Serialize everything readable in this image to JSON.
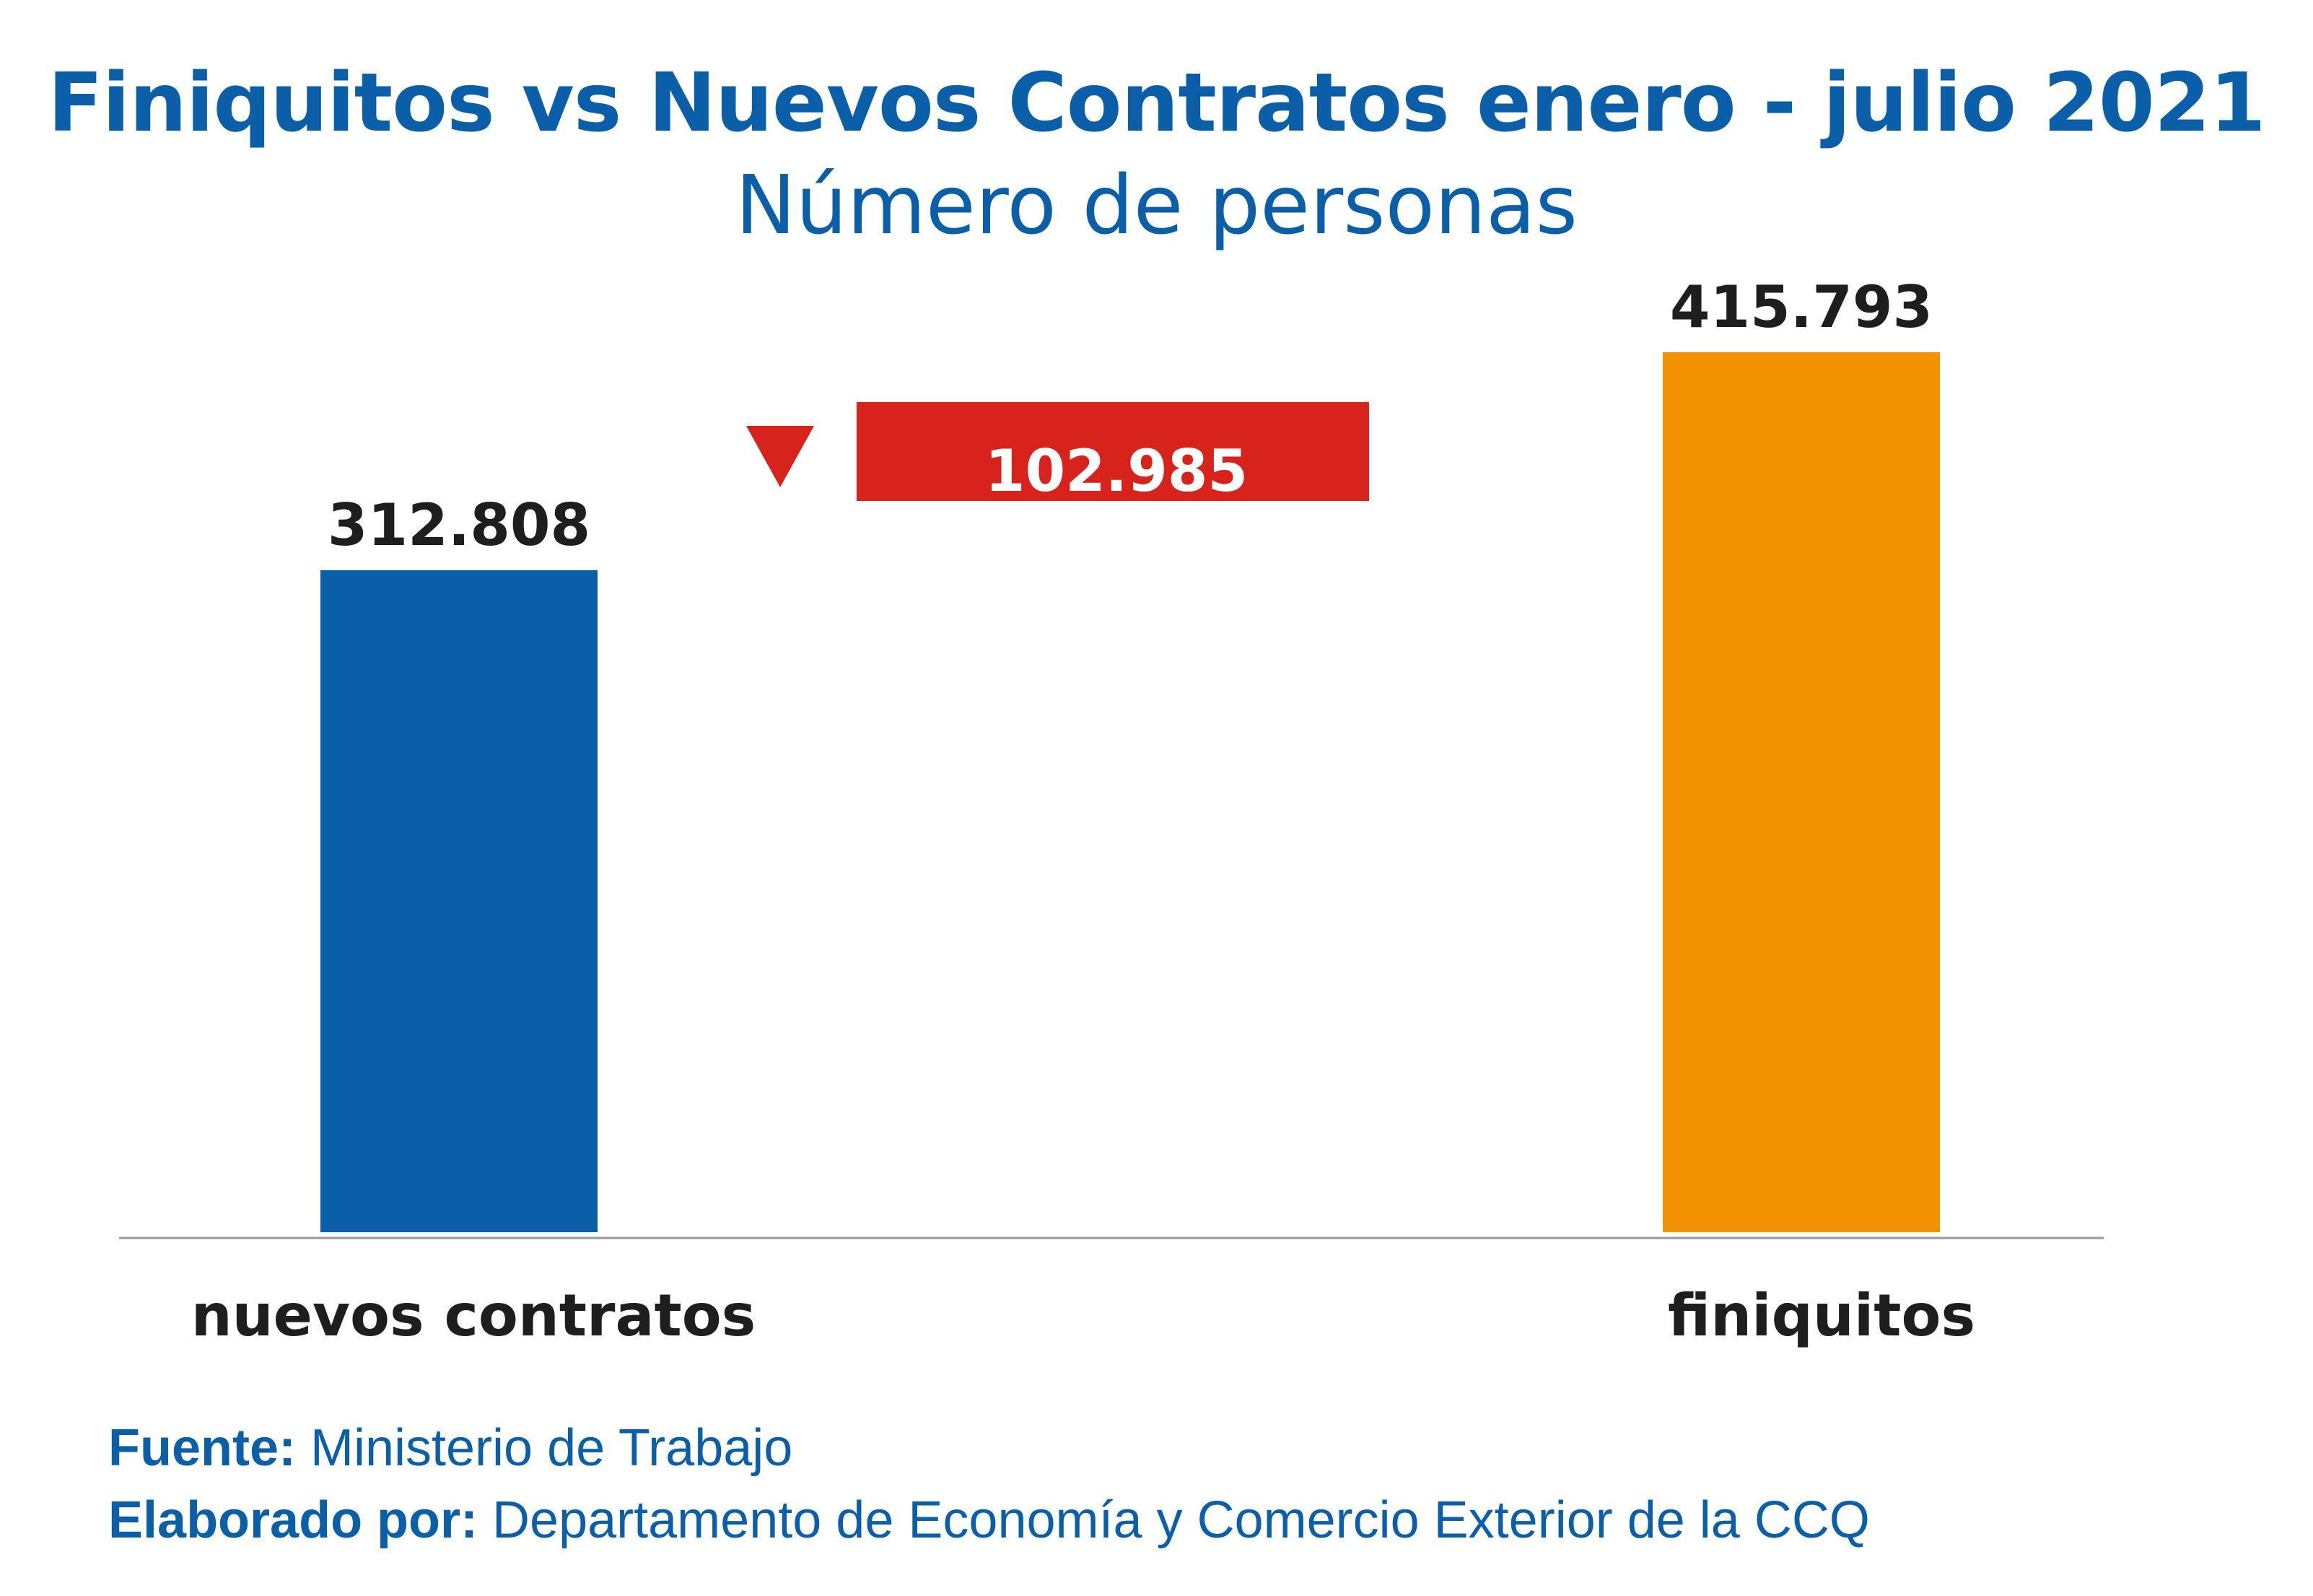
{
  "chart_data": {
    "type": "bar",
    "title": "Finiquitos vs Nuevos Contratos enero - julio 2021",
    "subtitle": "Número de personas",
    "categories": [
      "nuevos contratos",
      "finiquitos"
    ],
    "values": [
      312808,
      415793
    ],
    "value_labels": [
      "312.808",
      "415.793"
    ],
    "colors": [
      "#0a5fa8",
      "#f29200"
    ],
    "ylim": [
      0,
      440000
    ],
    "grid": false,
    "annotation": {
      "label": "102.985",
      "value": 102985,
      "icon": "down-triangle-icon",
      "color": "#d7231b"
    }
  },
  "footer": {
    "source_label": "Fuente:",
    "source_value": "Ministerio de Trabajo",
    "author_label": "Elaborado por:",
    "author_value": "Departamento de Economía y Comercio Exterior de la CCQ"
  }
}
